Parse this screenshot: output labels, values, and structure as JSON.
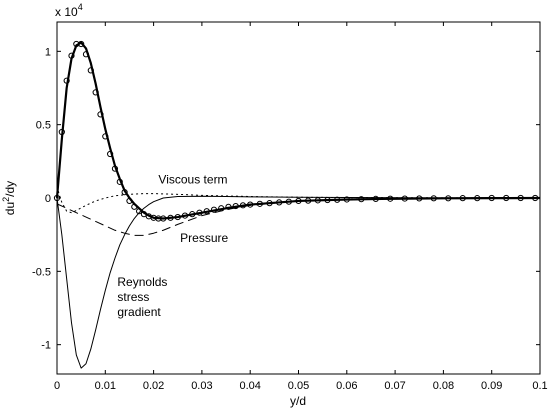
{
  "chart_data": {
    "type": "line",
    "title": "",
    "xlabel": "y/d",
    "ylabel_base": "du",
    "ylabel_sup": "2",
    "ylabel_tail": "/dy",
    "y_multiplier_base": "x 10",
    "y_multiplier_exp": "4",
    "xlim": [
      0,
      0.1
    ],
    "ylim": [
      -1.2,
      1.2
    ],
    "grid": false,
    "xticks": [
      {
        "value": 0,
        "label": "0"
      },
      {
        "value": 0.01,
        "label": "0.01"
      },
      {
        "value": 0.02,
        "label": "0.02"
      },
      {
        "value": 0.03,
        "label": "0.03"
      },
      {
        "value": 0.04,
        "label": "0.04"
      },
      {
        "value": 0.05,
        "label": "0.05"
      },
      {
        "value": 0.06,
        "label": "0.06"
      },
      {
        "value": 0.07,
        "label": "0.07"
      },
      {
        "value": 0.08,
        "label": "0.08"
      },
      {
        "value": 0.09,
        "label": "0.09"
      },
      {
        "value": 0.1,
        "label": "0.1"
      }
    ],
    "yticks": [
      {
        "value": 1,
        "label": "1"
      },
      {
        "value": 0.5,
        "label": "0.5"
      },
      {
        "value": 0,
        "label": "0"
      },
      {
        "value": -0.5,
        "label": "-0.5"
      },
      {
        "value": -1,
        "label": "-1"
      }
    ],
    "series": [
      {
        "key": "sum",
        "style": "solid-thick",
        "x": [
          0,
          0.001,
          0.002,
          0.003,
          0.004,
          0.005,
          0.006,
          0.007,
          0.008,
          0.009,
          0.01,
          0.011,
          0.012,
          0.013,
          0.014,
          0.015,
          0.016,
          0.017,
          0.018,
          0.019,
          0.02,
          0.022,
          0.025,
          0.03,
          0.035,
          0.04,
          0.05,
          0.06,
          0.07,
          0.08,
          0.09,
          0.1
        ],
        "y": [
          0,
          0.4,
          0.75,
          0.95,
          1.04,
          1.06,
          1.02,
          0.92,
          0.78,
          0.62,
          0.47,
          0.34,
          0.22,
          0.13,
          0.05,
          0.0,
          -0.04,
          -0.07,
          -0.1,
          -0.12,
          -0.135,
          -0.14,
          -0.13,
          -0.1,
          -0.07,
          -0.045,
          -0.02,
          -0.01,
          -0.005,
          -0.002,
          -0.001,
          0
        ]
      },
      {
        "key": "reynolds",
        "style": "solid-thin",
        "x": [
          0,
          0.001,
          0.002,
          0.003,
          0.004,
          0.005,
          0.006,
          0.007,
          0.008,
          0.009,
          0.01,
          0.011,
          0.012,
          0.013,
          0.014,
          0.015,
          0.016,
          0.017,
          0.018,
          0.019,
          0.02,
          0.022,
          0.025,
          0.03,
          0.035,
          0.04,
          0.05,
          0.06,
          0.08,
          0.1
        ],
        "y": [
          0,
          -0.25,
          -0.55,
          -0.85,
          -1.07,
          -1.16,
          -1.13,
          -1.03,
          -0.9,
          -0.76,
          -0.63,
          -0.51,
          -0.41,
          -0.32,
          -0.25,
          -0.19,
          -0.14,
          -0.1,
          -0.07,
          -0.045,
          -0.025,
          0.0,
          0.01,
          0.012,
          0.01,
          0.008,
          0.005,
          0.003,
          0.001,
          0
        ]
      },
      {
        "key": "viscous",
        "style": "dotted",
        "x": [
          0,
          0.0005,
          0.001,
          0.002,
          0.003,
          0.004,
          0.006,
          0.008,
          0.01,
          0.012,
          0.015,
          0.018,
          0.02,
          0.025,
          0.03,
          0.04,
          0.05,
          0.06,
          0.08,
          0.1
        ],
        "y": [
          0.08,
          0.02,
          -0.03,
          -0.09,
          -0.1,
          -0.085,
          -0.05,
          -0.02,
          0.0,
          0.015,
          0.025,
          0.03,
          0.03,
          0.025,
          0.018,
          0.01,
          0.005,
          0.003,
          0.001,
          0
        ]
      },
      {
        "key": "pressure",
        "style": "dashed",
        "x": [
          0,
          0.002,
          0.004,
          0.006,
          0.008,
          0.01,
          0.012,
          0.014,
          0.016,
          0.018,
          0.02,
          0.022,
          0.025,
          0.03,
          0.035,
          0.04,
          0.05,
          0.06,
          0.08,
          0.1
        ],
        "y": [
          -0.04,
          -0.07,
          -0.1,
          -0.13,
          -0.16,
          -0.19,
          -0.22,
          -0.24,
          -0.255,
          -0.255,
          -0.24,
          -0.22,
          -0.18,
          -0.12,
          -0.08,
          -0.05,
          -0.02,
          -0.01,
          -0.002,
          0
        ]
      },
      {
        "key": "markers",
        "style": "circles",
        "x": [
          0,
          0.001,
          0.002,
          0.003,
          0.004,
          0.005,
          0.006,
          0.007,
          0.008,
          0.009,
          0.01,
          0.011,
          0.012,
          0.013,
          0.014,
          0.015,
          0.016,
          0.017,
          0.018,
          0.019,
          0.02,
          0.021,
          0.022,
          0.0235,
          0.025,
          0.0265,
          0.028,
          0.0295,
          0.031,
          0.0325,
          0.034,
          0.0355,
          0.037,
          0.0385,
          0.04,
          0.042,
          0.044,
          0.046,
          0.048,
          0.05,
          0.052,
          0.054,
          0.056,
          0.058,
          0.06,
          0.063,
          0.066,
          0.069,
          0.072,
          0.075,
          0.078,
          0.081,
          0.084,
          0.087,
          0.09,
          0.093,
          0.096,
          0.099
        ],
        "y": [
          0,
          0.45,
          0.8,
          0.97,
          1.05,
          1.05,
          0.98,
          0.87,
          0.72,
          0.57,
          0.42,
          0.3,
          0.2,
          0.11,
          0.04,
          -0.02,
          -0.06,
          -0.09,
          -0.11,
          -0.125,
          -0.135,
          -0.14,
          -0.14,
          -0.135,
          -0.13,
          -0.12,
          -0.11,
          -0.1,
          -0.09,
          -0.08,
          -0.07,
          -0.06,
          -0.055,
          -0.05,
          -0.045,
          -0.04,
          -0.035,
          -0.03,
          -0.025,
          -0.02,
          -0.018,
          -0.016,
          -0.014,
          -0.012,
          -0.01,
          -0.008,
          -0.006,
          -0.005,
          -0.004,
          -0.003,
          -0.002,
          -0.002,
          -0.001,
          -0.001,
          0,
          0,
          0,
          0
        ]
      }
    ],
    "annotations": [
      {
        "key": "viscous",
        "lines": [
          "Viscous term"
        ],
        "x": 0.021,
        "y": 0.1
      },
      {
        "key": "pressure",
        "lines": [
          "Pressure"
        ],
        "x": 0.0255,
        "y": -0.3
      },
      {
        "key": "reynolds",
        "lines": [
          "Reynolds",
          "stress",
          "gradient"
        ],
        "x": 0.0125,
        "y": -0.6
      }
    ]
  }
}
